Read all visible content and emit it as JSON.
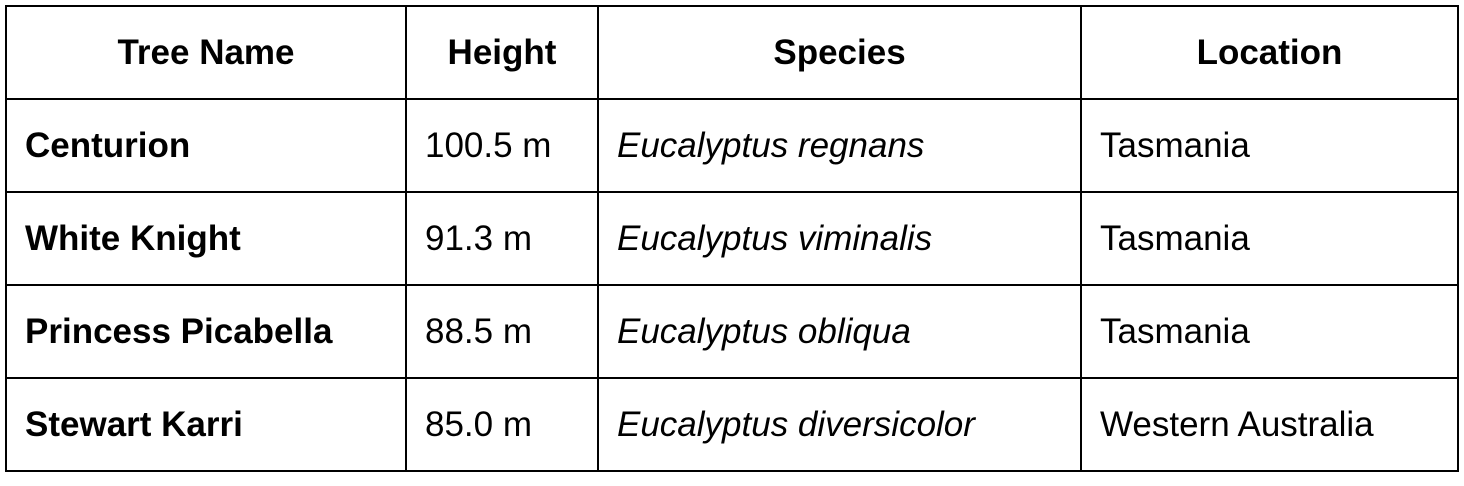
{
  "table": {
    "header": [
      "Tree Name",
      "Height",
      "Species",
      "Location"
    ],
    "rows": [
      [
        "Centurion",
        "100.5 m",
        "Eucalyptus regnans",
        "Tasmania"
      ],
      [
        "White Knight",
        "91.3 m",
        "Eucalyptus viminalis",
        "Tasmania"
      ],
      [
        "Princess Picabella",
        "88.5 m",
        "Eucalyptus obliqua",
        "Tasmania"
      ],
      [
        "Stewart Karri",
        "85.0 m",
        "Eucalyptus diversicolor",
        "Western Australia"
      ]
    ]
  }
}
